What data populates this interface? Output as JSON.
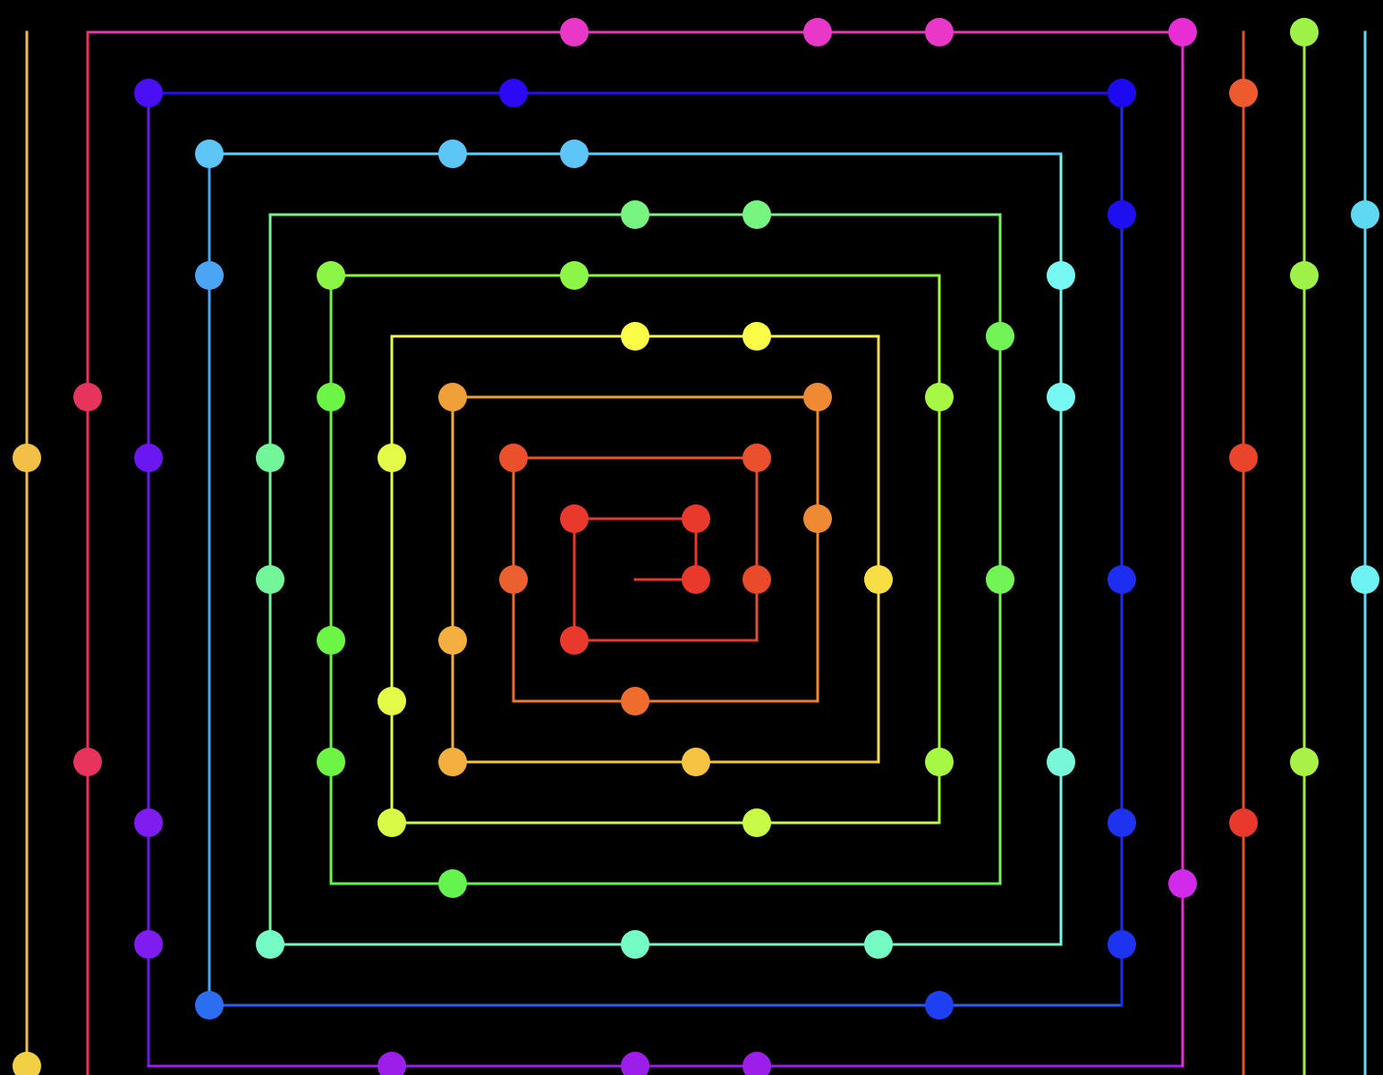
{
  "background": "#000000",
  "diagram": {
    "type": "square-spiral",
    "grid_step": 1,
    "center": [
      0,
      0
    ],
    "lines": [
      {
        "name": "segment-1",
        "from": [
          0,
          0
        ],
        "to": [
          1,
          0
        ],
        "color": "#e8392c"
      },
      {
        "name": "segment-2",
        "from": [
          1,
          0
        ],
        "to": [
          1,
          -1
        ],
        "color": "#e8392c"
      },
      {
        "name": "segment-3",
        "from": [
          1,
          -1
        ],
        "to": [
          -1,
          -1
        ],
        "color": "#e8392c"
      },
      {
        "name": "segment-4",
        "from": [
          -1,
          -1
        ],
        "to": [
          -1,
          1
        ],
        "color": "#e8392c"
      },
      {
        "name": "segment-5",
        "from": [
          -1,
          1
        ],
        "to": [
          2,
          1
        ],
        "color": "#e8392c"
      },
      {
        "name": "segment-6",
        "from": [
          2,
          1
        ],
        "to": [
          2,
          -2
        ],
        "color": "#e8502c"
      },
      {
        "name": "segment-7",
        "from": [
          2,
          -2
        ],
        "to": [
          -2,
          -2
        ],
        "color": "#ea552d"
      },
      {
        "name": "segment-8",
        "from": [
          -2,
          -2
        ],
        "to": [
          -2,
          2
        ],
        "color": "#ec6a2f"
      },
      {
        "name": "segment-9",
        "from": [
          -2,
          2
        ],
        "to": [
          3,
          2
        ],
        "color": "#ee7a30"
      },
      {
        "name": "segment-10",
        "from": [
          3,
          2
        ],
        "to": [
          3,
          -3
        ],
        "color": "#ef8a33"
      },
      {
        "name": "segment-11",
        "from": [
          3,
          -3
        ],
        "to": [
          -3,
          -3
        ],
        "color": "#f0a038"
      },
      {
        "name": "segment-12",
        "from": [
          -3,
          -3
        ],
        "to": [
          -3,
          3
        ],
        "color": "#f3b03e"
      },
      {
        "name": "segment-13",
        "from": [
          -3,
          3
        ],
        "to": [
          4,
          3
        ],
        "color": "#f6c342"
      },
      {
        "name": "segment-14",
        "from": [
          4,
          3
        ],
        "to": [
          4,
          -4
        ],
        "color": "#f9dd45"
      },
      {
        "name": "segment-15",
        "from": [
          4,
          -4
        ],
        "to": [
          -4,
          -4
        ],
        "color": "#fbfc48"
      },
      {
        "name": "segment-16",
        "from": [
          -4,
          -4
        ],
        "to": [
          -4,
          4
        ],
        "color": "#e4fb47"
      },
      {
        "name": "segment-17",
        "from": [
          -4,
          4
        ],
        "to": [
          5,
          4
        ],
        "color": "#c7fb46"
      },
      {
        "name": "segment-18",
        "from": [
          5,
          4
        ],
        "to": [
          5,
          -5
        ],
        "color": "#a6f845"
      },
      {
        "name": "segment-19",
        "from": [
          5,
          -5
        ],
        "to": [
          -5,
          -5
        ],
        "color": "#8bf645"
      },
      {
        "name": "segment-20",
        "from": [
          -5,
          -5
        ],
        "to": [
          -5,
          5
        ],
        "color": "#6df545"
      },
      {
        "name": "segment-21",
        "from": [
          -5,
          5
        ],
        "to": [
          6,
          5
        ],
        "color": "#65f34e"
      },
      {
        "name": "segment-22",
        "from": [
          6,
          5
        ],
        "to": [
          6,
          -6
        ],
        "color": "#72f456"
      },
      {
        "name": "segment-23",
        "from": [
          6,
          -6
        ],
        "to": [
          -6,
          -6
        ],
        "color": "#78f480"
      },
      {
        "name": "segment-24",
        "from": [
          -6,
          -6
        ],
        "to": [
          -6,
          6
        ],
        "color": "#73f59a"
      },
      {
        "name": "segment-25",
        "from": [
          -6,
          6
        ],
        "to": [
          7,
          6
        ],
        "color": "#75fbc4"
      },
      {
        "name": "segment-26",
        "from": [
          7,
          6
        ],
        "to": [
          7,
          -7
        ],
        "color": "#78f8e6"
      },
      {
        "name": "segment-27",
        "from": [
          7,
          -7
        ],
        "to": [
          -7,
          -7
        ],
        "color": "#5dd0f6"
      },
      {
        "name": "segment-28",
        "from": [
          -7,
          -7
        ],
        "to": [
          -7,
          7
        ],
        "color": "#4ba4f4"
      },
      {
        "name": "segment-29",
        "from": [
          -7,
          7
        ],
        "to": [
          8,
          7
        ],
        "color": "#2c5ef1"
      },
      {
        "name": "segment-30",
        "from": [
          8,
          7
        ],
        "to": [
          8,
          -8
        ],
        "color": "#1d2ef0"
      },
      {
        "name": "segment-31",
        "from": [
          8,
          -8
        ],
        "to": [
          -8,
          -8
        ],
        "color": "#2c09f5"
      },
      {
        "name": "segment-32",
        "from": [
          -8,
          -8
        ],
        "to": [
          -8,
          8
        ],
        "color": "#6a17f1"
      },
      {
        "name": "segment-33",
        "from": [
          -8,
          8
        ],
        "to": [
          9,
          8
        ],
        "color": "#9c1ee8"
      },
      {
        "name": "segment-34",
        "from": [
          9,
          8
        ],
        "to": [
          9,
          -9
        ],
        "color": "#e82dd5"
      },
      {
        "name": "segment-35",
        "from": [
          9,
          -9
        ],
        "to": [
          -9,
          -9
        ],
        "color": "#e938b4"
      },
      {
        "name": "segment-36",
        "from": [
          -9,
          -9
        ],
        "to": [
          -9,
          9
        ],
        "color": "#e7345c"
      },
      {
        "name": "segment-37",
        "from": [
          -10,
          -9
        ],
        "to": [
          -10,
          9
        ],
        "color": "#f2c046"
      },
      {
        "name": "segment-38",
        "from": [
          10,
          -9
        ],
        "to": [
          10,
          9
        ],
        "color": "#e8502c"
      },
      {
        "name": "segment-39",
        "from": [
          11,
          -9
        ],
        "to": [
          11,
          9
        ],
        "color": "#9ef247"
      },
      {
        "name": "segment-40",
        "from": [
          12,
          -9
        ],
        "to": [
          12,
          9
        ],
        "color": "#5fd8f2"
      }
    ],
    "nodes": [
      {
        "x": 1,
        "y": 0,
        "color": "#e8392c"
      },
      {
        "x": 1,
        "y": -1,
        "color": "#e8392c"
      },
      {
        "x": -1,
        "y": -1,
        "color": "#e8392c"
      },
      {
        "x": -1,
        "y": 1,
        "color": "#e8392c"
      },
      {
        "x": -2,
        "y": -2,
        "color": "#ea502c"
      },
      {
        "x": 2,
        "y": -2,
        "color": "#ea502c"
      },
      {
        "x": 2,
        "y": 0,
        "color": "#e84a2a"
      },
      {
        "x": -2,
        "y": 0,
        "color": "#ec5f2e"
      },
      {
        "x": 0,
        "y": 2,
        "color": "#ee6d2e"
      },
      {
        "x": 3,
        "y": -3,
        "color": "#ee8a33"
      },
      {
        "x": 3,
        "y": -1,
        "color": "#ee8a33"
      },
      {
        "x": -3,
        "y": -3,
        "color": "#f0a038"
      },
      {
        "x": -3,
        "y": 1,
        "color": "#f3b03e"
      },
      {
        "x": -3,
        "y": 3,
        "color": "#f3b03e"
      },
      {
        "x": 1,
        "y": 3,
        "color": "#f6c342"
      },
      {
        "x": 4,
        "y": 0,
        "color": "#f9dd45"
      },
      {
        "x": 0,
        "y": -4,
        "color": "#fbfc48"
      },
      {
        "x": 2,
        "y": -4,
        "color": "#fbfc48"
      },
      {
        "x": -4,
        "y": -2,
        "color": "#e4fb47"
      },
      {
        "x": -4,
        "y": 2,
        "color": "#e4fb47"
      },
      {
        "x": -4,
        "y": 4,
        "color": "#d8fb47"
      },
      {
        "x": 2,
        "y": 4,
        "color": "#c7fb46"
      },
      {
        "x": 5,
        "y": -3,
        "color": "#a6f845"
      },
      {
        "x": 5,
        "y": 3,
        "color": "#a6f845"
      },
      {
        "x": -5,
        "y": -5,
        "color": "#8bf645"
      },
      {
        "x": -1,
        "y": -5,
        "color": "#8bf645"
      },
      {
        "x": -5,
        "y": -3,
        "color": "#6df545"
      },
      {
        "x": -5,
        "y": 1,
        "color": "#6df545"
      },
      {
        "x": -5,
        "y": 3,
        "color": "#6df545"
      },
      {
        "x": -3,
        "y": 5,
        "color": "#65f34e"
      },
      {
        "x": 6,
        "y": -4,
        "color": "#72f456"
      },
      {
        "x": 6,
        "y": 0,
        "color": "#72f456"
      },
      {
        "x": 0,
        "y": -6,
        "color": "#78f480"
      },
      {
        "x": 2,
        "y": -6,
        "color": "#78f480"
      },
      {
        "x": -6,
        "y": -2,
        "color": "#73f59a"
      },
      {
        "x": -6,
        "y": 0,
        "color": "#73f59a"
      },
      {
        "x": -6,
        "y": 6,
        "color": "#75fbc4"
      },
      {
        "x": 0,
        "y": 6,
        "color": "#75fbc4"
      },
      {
        "x": 4,
        "y": 6,
        "color": "#75fbc4"
      },
      {
        "x": 7,
        "y": -5,
        "color": "#78f8f2"
      },
      {
        "x": 7,
        "y": -3,
        "color": "#78f8f2"
      },
      {
        "x": 7,
        "y": 3,
        "color": "#78f8d8"
      },
      {
        "x": -7,
        "y": -7,
        "color": "#5dc6f6"
      },
      {
        "x": -3,
        "y": -7,
        "color": "#5dc6f6"
      },
      {
        "x": -1,
        "y": -7,
        "color": "#5dc6f6"
      },
      {
        "x": -7,
        "y": -5,
        "color": "#4ba4f4"
      },
      {
        "x": -7,
        "y": 7,
        "color": "#2c6ef1"
      },
      {
        "x": 5,
        "y": 7,
        "color": "#1d40f0"
      },
      {
        "x": 8,
        "y": -8,
        "color": "#1d09f0"
      },
      {
        "x": 8,
        "y": -6,
        "color": "#1d0ff0"
      },
      {
        "x": 8,
        "y": 0,
        "color": "#1d2ef0"
      },
      {
        "x": 8,
        "y": 4,
        "color": "#1d33f0"
      },
      {
        "x": 8,
        "y": 6,
        "color": "#1d33f0"
      },
      {
        "x": -8,
        "y": -8,
        "color": "#4a0ff5"
      },
      {
        "x": -2,
        "y": -8,
        "color": "#2c09f5"
      },
      {
        "x": -8,
        "y": -2,
        "color": "#6a17f1"
      },
      {
        "x": -8,
        "y": 4,
        "color": "#7f1cf0"
      },
      {
        "x": -8,
        "y": 6,
        "color": "#7f1cf0"
      },
      {
        "x": -4,
        "y": 8,
        "color": "#9c1ee8"
      },
      {
        "x": 0,
        "y": 8,
        "color": "#9c1ee8"
      },
      {
        "x": 2,
        "y": 8,
        "color": "#9c1ee8"
      },
      {
        "x": 9,
        "y": -9,
        "color": "#e82dd5"
      },
      {
        "x": 9,
        "y": 5,
        "color": "#d02be8"
      },
      {
        "x": -1,
        "y": -9,
        "color": "#e938c8"
      },
      {
        "x": 3,
        "y": -9,
        "color": "#e938c8"
      },
      {
        "x": 5,
        "y": -9,
        "color": "#e938c8"
      },
      {
        "x": -9,
        "y": -3,
        "color": "#e7345c"
      },
      {
        "x": -9,
        "y": 3,
        "color": "#e7345c"
      },
      {
        "x": -10,
        "y": -2,
        "color": "#f2c046"
      },
      {
        "x": -10,
        "y": 8,
        "color": "#f2d046"
      },
      {
        "x": 10,
        "y": -8,
        "color": "#ec5a2e"
      },
      {
        "x": 10,
        "y": -2,
        "color": "#e8452a"
      },
      {
        "x": 10,
        "y": 4,
        "color": "#e8392c"
      },
      {
        "x": 11,
        "y": -9,
        "color": "#9ef247"
      },
      {
        "x": 11,
        "y": -5,
        "color": "#9ef247"
      },
      {
        "x": 11,
        "y": 3,
        "color": "#a8f247"
      },
      {
        "x": 12,
        "y": -6,
        "color": "#5fd8f2"
      },
      {
        "x": 12,
        "y": 0,
        "color": "#6ff2f2"
      }
    ]
  }
}
